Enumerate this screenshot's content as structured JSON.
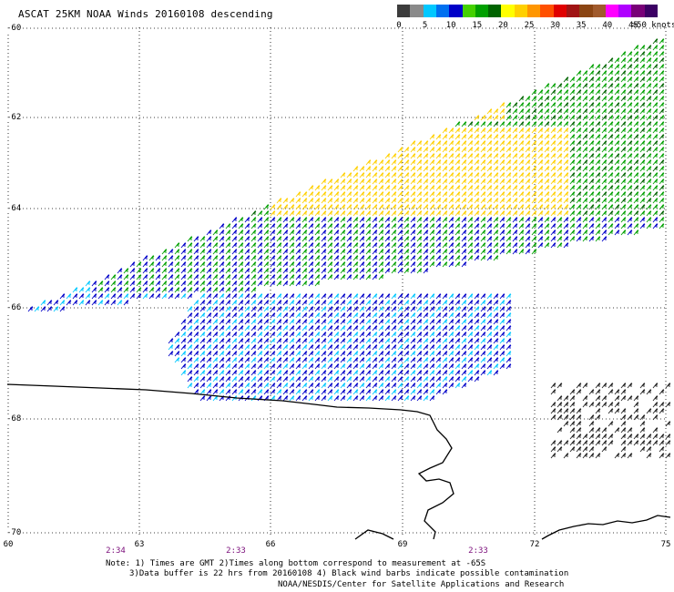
{
  "title": "ASCAT 25KM NOAA Winds 20160108 descending",
  "legend": {
    "colors": [
      "#3c3c3c",
      "#8a8a8a",
      "#00c8ff",
      "#0070f0",
      "#0000c8",
      "#44d100",
      "#00a000",
      "#006400",
      "#ffff00",
      "#ffd000",
      "#ff9600",
      "#ff5000",
      "#e00000",
      "#a01414",
      "#8b4513",
      "#a05a2c",
      "#ff00ff",
      "#b000ff",
      "#780078",
      "#3c0064"
    ],
    "labels": [
      "0",
      "5",
      "10",
      "15",
      "20",
      "25",
      "30",
      "35",
      "40",
      "45",
      ">50 knots"
    ]
  },
  "axes": {
    "lat_labels": [
      "-60",
      "-62",
      "-64",
      "-66",
      "-68",
      "-70"
    ],
    "lon_labels": [
      "60",
      "63",
      "66",
      "69",
      "72",
      "75"
    ],
    "times": [
      "2:34",
      "2:33",
      "2:33"
    ]
  },
  "notes": {
    "line1": "Note: 1) Times are GMT 2)Times along bottom correspond to measurement at -65S",
    "line2": "3)Data buffer is 22 hrs from 20160108 4) Black wind barbs indicate possible contamination",
    "line3": "NOAA/NESDIS/Center for Satellite Applications and Research"
  },
  "map_colors": {
    "coast": "#000000",
    "grid": "#000000",
    "low": "#00c8ff",
    "mid": "#0000c8",
    "green": "#00a000",
    "dkgreen": "#006400",
    "yellow": "#ffd000"
  }
}
